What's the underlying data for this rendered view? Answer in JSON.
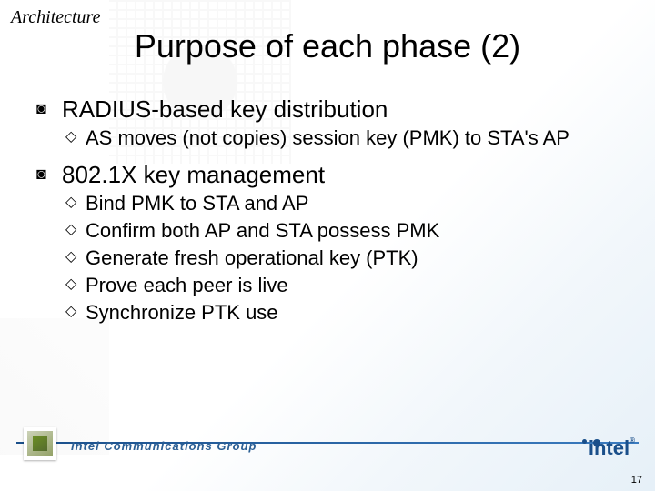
{
  "category": "Architecture",
  "title": "Purpose of each phase (2)",
  "bullets": [
    {
      "text": "RADIUS-based key distribution",
      "sub": [
        "AS moves (not copies) session key (PMK) to STA's AP"
      ]
    },
    {
      "text": "802.1X key management",
      "sub": [
        "Bind PMK to STA and AP",
        "Confirm both AP and STA possess PMK",
        "Generate fresh operational key (PTK)",
        "Prove each peer is live",
        "Synchronize PTK use"
      ]
    }
  ],
  "footer_group": "Intel Communications Group",
  "logo_text": "intel",
  "page_number": "17",
  "colors": {
    "text": "#000000",
    "accent": "#1a4f8a",
    "bg_start": "#ffffff",
    "bg_end": "#e6f0f8"
  }
}
